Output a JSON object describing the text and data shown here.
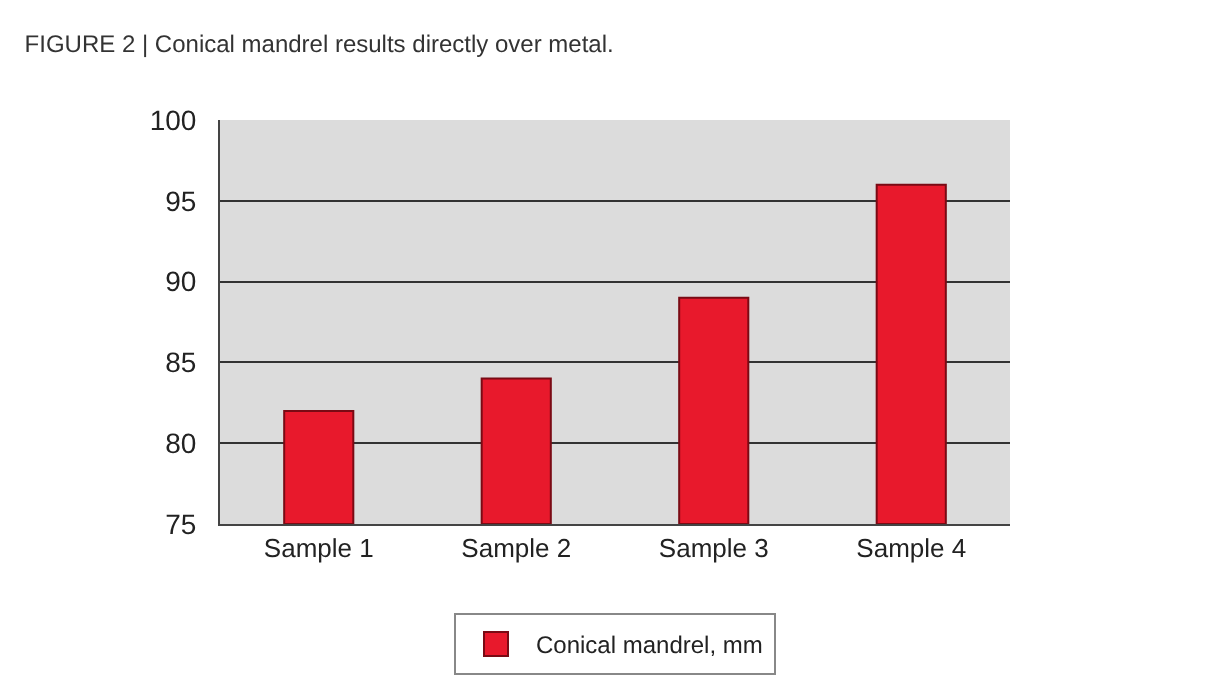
{
  "chart_data": {
    "type": "bar",
    "title": "FIGURE 2 | Conical mandrel results directly over metal.",
    "categories": [
      "Sample 1",
      "Sample 2",
      "Sample 3",
      "Sample 4"
    ],
    "series": [
      {
        "name": "Conical mandrel, mm",
        "color": "#e8192c",
        "values": [
          82,
          84,
          89,
          96
        ]
      }
    ],
    "ylim": [
      75,
      100
    ],
    "yticks": [
      75,
      80,
      85,
      90,
      95,
      100
    ],
    "grid": "y",
    "legend": "bottom"
  }
}
